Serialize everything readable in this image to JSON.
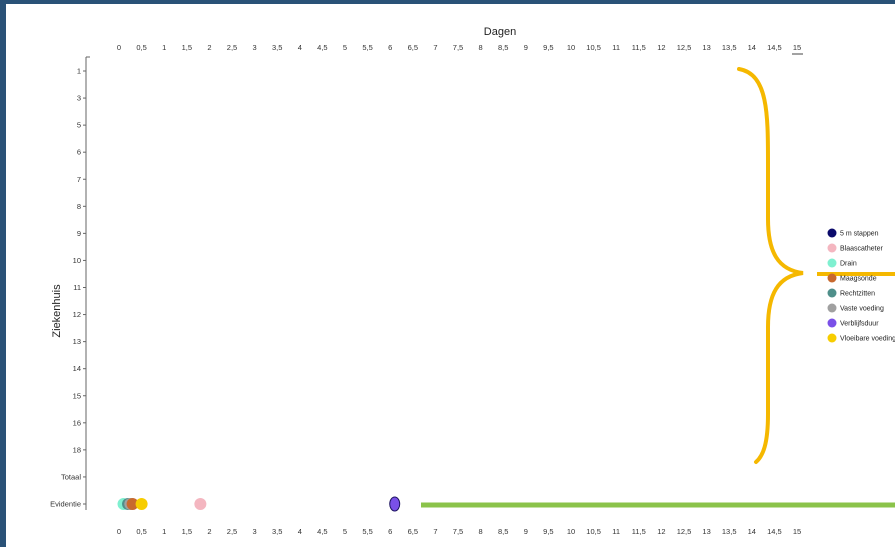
{
  "chart_data": {
    "type": "scatter",
    "xlabel": "Dagen",
    "ylabel": "Ziekenhuis",
    "xlim": [
      0,
      15
    ],
    "x_ticks": [
      "0",
      "0,5",
      "1",
      "1,5",
      "2",
      "2,5",
      "3",
      "3,5",
      "4",
      "4,5",
      "5",
      "5,5",
      "6",
      "6,5",
      "7",
      "7,5",
      "8",
      "8,5",
      "9",
      "9,5",
      "10",
      "10,5",
      "11",
      "11,5",
      "12",
      "12,5",
      "13",
      "13,5",
      "14",
      "14,5",
      "15"
    ],
    "y_categories": [
      "1",
      "3",
      "5",
      "6",
      "7",
      "8",
      "9",
      "10",
      "11",
      "12",
      "13",
      "14",
      "15",
      "16",
      "18",
      "Totaal",
      "Evidentie"
    ],
    "series": [
      {
        "name": "5 m stappen",
        "color": "#0b0a6b",
        "points": []
      },
      {
        "name": "Blaascatheter",
        "color": "#f4b6c0",
        "points": [
          {
            "x": 1.8,
            "y": "Evidentie"
          }
        ]
      },
      {
        "name": "Drain",
        "color": "#7ff0d0",
        "points": [
          {
            "x": 0.1,
            "y": "Evidentie"
          }
        ]
      },
      {
        "name": "Maagsonde",
        "color": "#c8692e",
        "points": [
          {
            "x": 0.3,
            "y": "Evidentie"
          }
        ]
      },
      {
        "name": "Rechtzitten",
        "color": "#4f8f8a",
        "points": [
          {
            "x": 0.2,
            "y": "Evidentie"
          }
        ]
      },
      {
        "name": "Vaste voeding",
        "color": "#a0a0a0",
        "points": [
          {
            "x": 0.25,
            "y": "Evidentie"
          }
        ]
      },
      {
        "name": "Verblijfsduur",
        "color": "#7a50e8",
        "points": [
          {
            "x": 6.1,
            "y": "Evidentie"
          }
        ]
      },
      {
        "name": "Vloeibare voeding",
        "color": "#f7cd00",
        "points": [
          {
            "x": 0.5,
            "y": "Evidentie"
          }
        ]
      }
    ],
    "legend_position": "right",
    "grid": false
  },
  "annotations": {
    "brace_color": "#f5b800",
    "arrow_color": "#f5b800",
    "evidence_bar_color": "#8bc34a"
  }
}
